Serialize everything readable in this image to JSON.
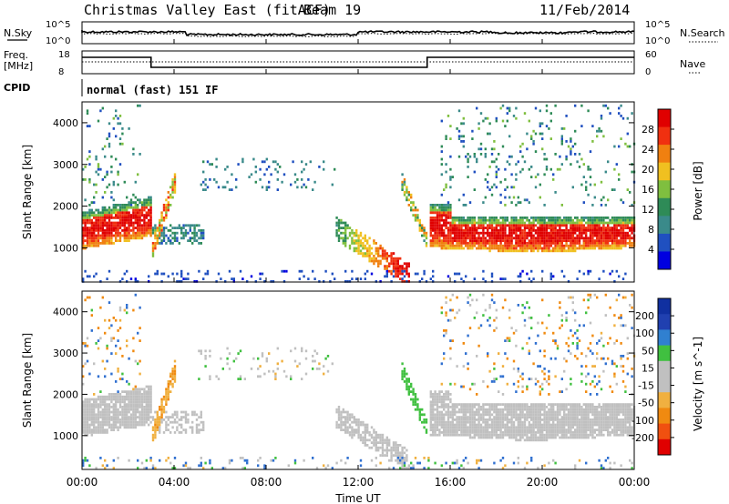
{
  "header": {
    "title": "Christmas Valley East (fitACF)",
    "beam": "Beam 19",
    "date": "11/Feb/2014"
  },
  "top_panels": {
    "nsky": {
      "left_label": "N.Sky",
      "right_label": "N.Search",
      "ticks_left": [
        "10^5",
        "10^0"
      ],
      "ticks_right": [
        "10^5",
        "10^0"
      ]
    },
    "freq": {
      "left_label_1": "Freq.",
      "left_label_2": "[MHz]",
      "right_label": "Nave",
      "ticks_left": [
        "18",
        "8"
      ],
      "ticks_right": [
        "60",
        "0"
      ]
    },
    "cpid_label": "CPID",
    "cpid_text": "normal (fast) 151 IF"
  },
  "colors": {
    "power_scale": [
      "#0000e0",
      "#2050c0",
      "#3a8a8a",
      "#2e8b57",
      "#7fbf3f",
      "#f0c020",
      "#f08010",
      "#f03010",
      "#e00000"
    ],
    "velocity_scale": [
      "#e00000",
      "#f05010",
      "#f08a10",
      "#f0b040",
      "#c0c0c0",
      "#c0c0c0",
      "#40c040",
      "#3080d0",
      "#2040b0",
      "#1030a0"
    ]
  },
  "chart_data": [
    {
      "type": "heatmap",
      "name": "power",
      "xlabel": "",
      "ylabel": "Slant Range [km]",
      "x_ticks": [
        "00:00",
        "04:00",
        "08:00",
        "12:00",
        "16:00",
        "20:00",
        "00:00"
      ],
      "y_ticks": [
        "1000",
        "2000",
        "3000",
        "4000"
      ],
      "ylim": [
        180,
        4500
      ],
      "colorbar_label": "Power [dB]",
      "colorbar_ticks": [
        "28",
        "24",
        "20",
        "16",
        "12",
        "8",
        "4"
      ],
      "colorbar_range": [
        0,
        32
      ]
    },
    {
      "type": "heatmap",
      "name": "velocity",
      "xlabel": "Time UT",
      "ylabel": "Slant Range [km]",
      "x_ticks": [
        "00:00",
        "04:00",
        "08:00",
        "12:00",
        "16:00",
        "20:00",
        "00:00"
      ],
      "y_ticks": [
        "1000",
        "2000",
        "3000",
        "4000"
      ],
      "ylim": [
        180,
        4500
      ],
      "colorbar_label": "Velocity [m s^-1]",
      "colorbar_ticks": [
        "200",
        "100",
        "50",
        "15",
        "-15",
        "-50",
        "-100",
        "-200"
      ]
    }
  ]
}
